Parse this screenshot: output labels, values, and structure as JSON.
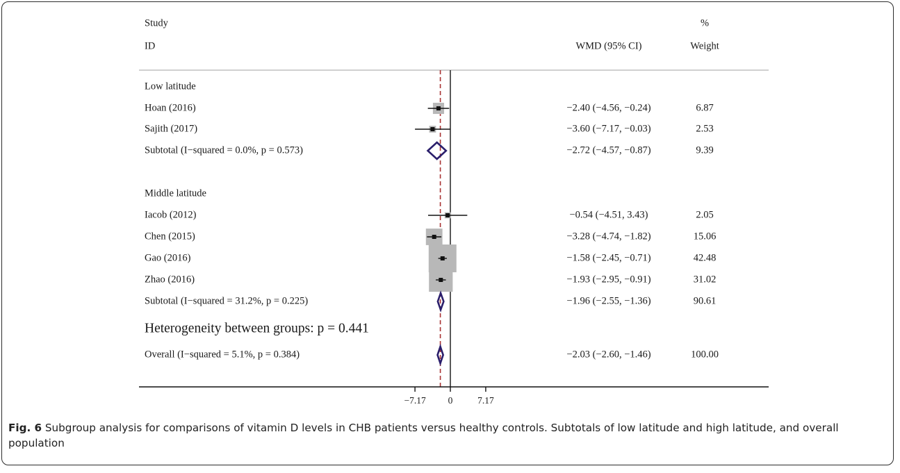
{
  "chart_data": {
    "type": "forest",
    "header": {
      "col1_top": "Study",
      "col1_bottom": "ID",
      "col2": "WMD (95% CI)",
      "col3_top": "%",
      "col3_bottom": "Weight"
    },
    "xlim": [
      -11.5,
      11.5
    ],
    "x_ticks": [
      {
        "value": -7.17,
        "label": "−7.17"
      },
      {
        "value": 0,
        "label": "0"
      },
      {
        "value": 7.17,
        "label": "7.17"
      }
    ],
    "overall_effect": -2.03,
    "rows": [
      {
        "kind": "group",
        "label": "Low latitude"
      },
      {
        "kind": "study",
        "label": "Hoan (2016)",
        "est": -2.4,
        "lo": -4.56,
        "hi": -0.24,
        "weight": 6.87,
        "ci_text": "−2.40 (−4.56, −0.24)",
        "weight_text": "6.87"
      },
      {
        "kind": "study",
        "label": "Sajith (2017)",
        "est": -3.6,
        "lo": -7.17,
        "hi": -0.03,
        "weight": 2.53,
        "ci_text": "−3.60 (−7.17, −0.03)",
        "weight_text": "2.53"
      },
      {
        "kind": "subtotal",
        "label": "Subtotal  (I−squared = 0.0%, p = 0.573)",
        "est": -2.72,
        "lo": -4.57,
        "hi": -0.87,
        "ci_text": "−2.72 (−4.57, −0.87)",
        "weight_text": "9.39"
      },
      {
        "kind": "spacer"
      },
      {
        "kind": "group",
        "label": "Middle latitude"
      },
      {
        "kind": "study",
        "label": "Iacob (2012)",
        "est": -0.54,
        "lo": -4.51,
        "hi": 3.43,
        "weight": 2.05,
        "ci_text": "−0.54 (−4.51, 3.43)",
        "weight_text": "2.05"
      },
      {
        "kind": "study",
        "label": "Chen (2015)",
        "est": -3.28,
        "lo": -4.74,
        "hi": -1.82,
        "weight": 15.06,
        "ci_text": "−3.28 (−4.74, −1.82)",
        "weight_text": "15.06"
      },
      {
        "kind": "study",
        "label": "Gao (2016)",
        "est": -1.58,
        "lo": -2.45,
        "hi": -0.71,
        "weight": 42.48,
        "ci_text": "−1.58 (−2.45, −0.71)",
        "weight_text": "42.48"
      },
      {
        "kind": "study",
        "label": "Zhao (2016)",
        "est": -1.93,
        "lo": -2.95,
        "hi": -0.91,
        "weight": 31.02,
        "ci_text": "−1.93 (−2.95, −0.91)",
        "weight_text": "31.02"
      },
      {
        "kind": "subtotal",
        "label": "Subtotal  (I−squared = 31.2%, p = 0.225)",
        "est": -1.96,
        "lo": -2.55,
        "hi": -1.36,
        "ci_text": "−1.96 (−2.55, −1.36)",
        "weight_text": "90.61"
      },
      {
        "kind": "heterogeneity",
        "label": "Heterogeneity between groups: p = 0.441"
      },
      {
        "kind": "overall",
        "label": "Overall  (I−squared = 5.1%, p = 0.384)",
        "est": -2.03,
        "lo": -2.6,
        "hi": -1.46,
        "ci_text": "−2.03 (−2.60, −1.46)",
        "weight_text": "100.00"
      }
    ]
  },
  "caption": {
    "label": "Fig. 6",
    "text": " Subgroup analysis for comparisons of vitamin D levels in CHB patients versus healthy controls. Subtotals of low latitude and high latitude, and overall population"
  },
  "colors": {
    "reference_line": "#a83232",
    "diamond": "#2a1e6b",
    "weight_box": "#b8b8b8",
    "text": "#1a1a1a"
  }
}
